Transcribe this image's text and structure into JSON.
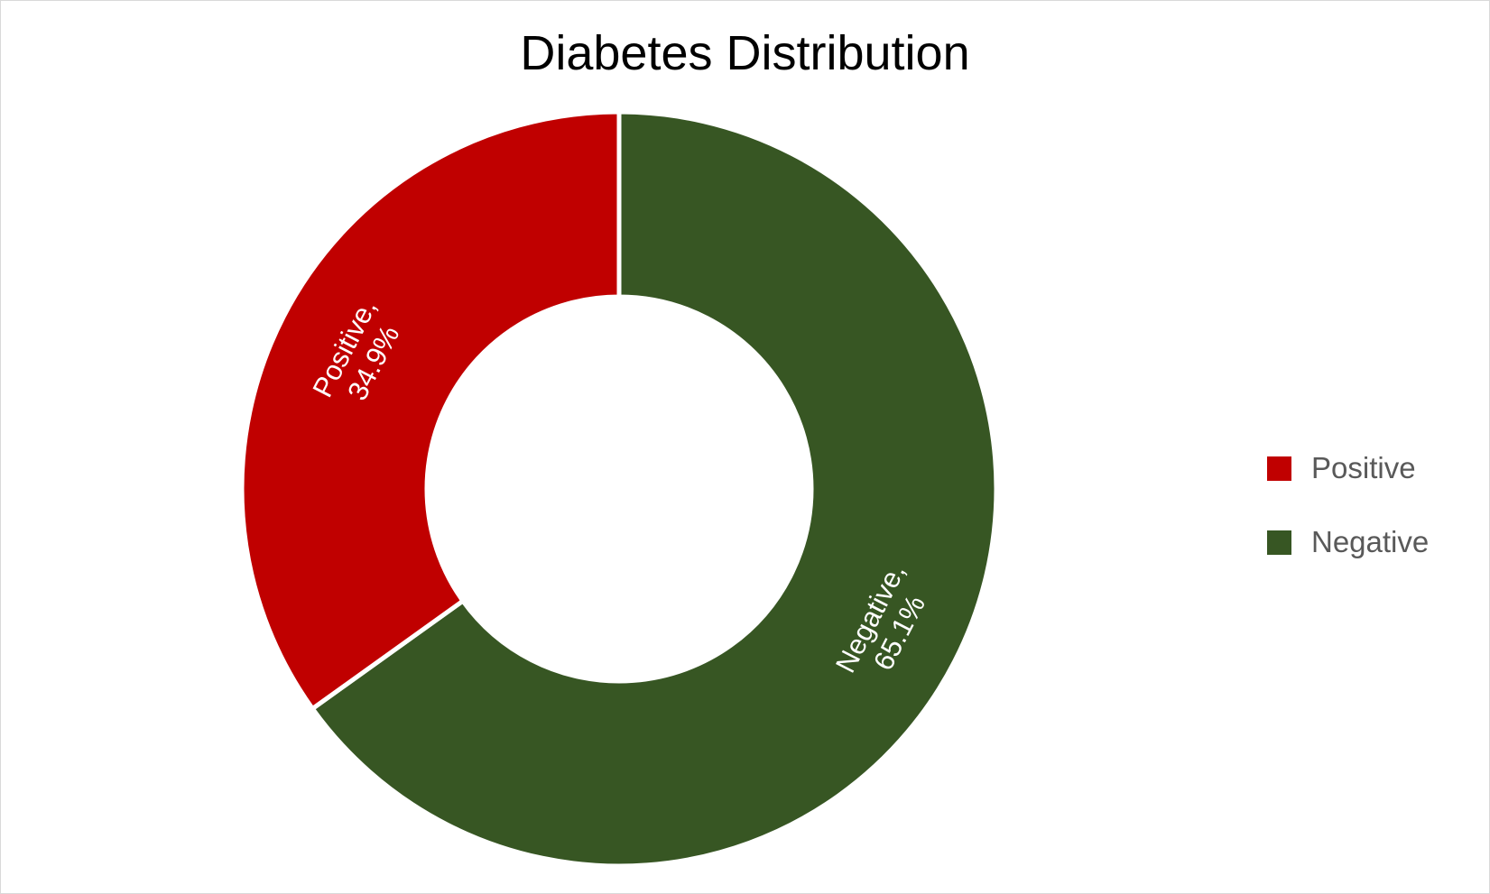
{
  "chart_data": {
    "type": "pie",
    "variant": "doughnut",
    "title": "Diabetes Distribution",
    "slices": [
      {
        "label": "Positive",
        "value": 34.9,
        "display": "34.9%",
        "color": "#c00000"
      },
      {
        "label": "Negative",
        "value": 65.1,
        "display": "65.1%",
        "color": "#375623"
      }
    ],
    "legend": {
      "position": "right",
      "items": [
        "Positive",
        "Negative"
      ]
    }
  }
}
